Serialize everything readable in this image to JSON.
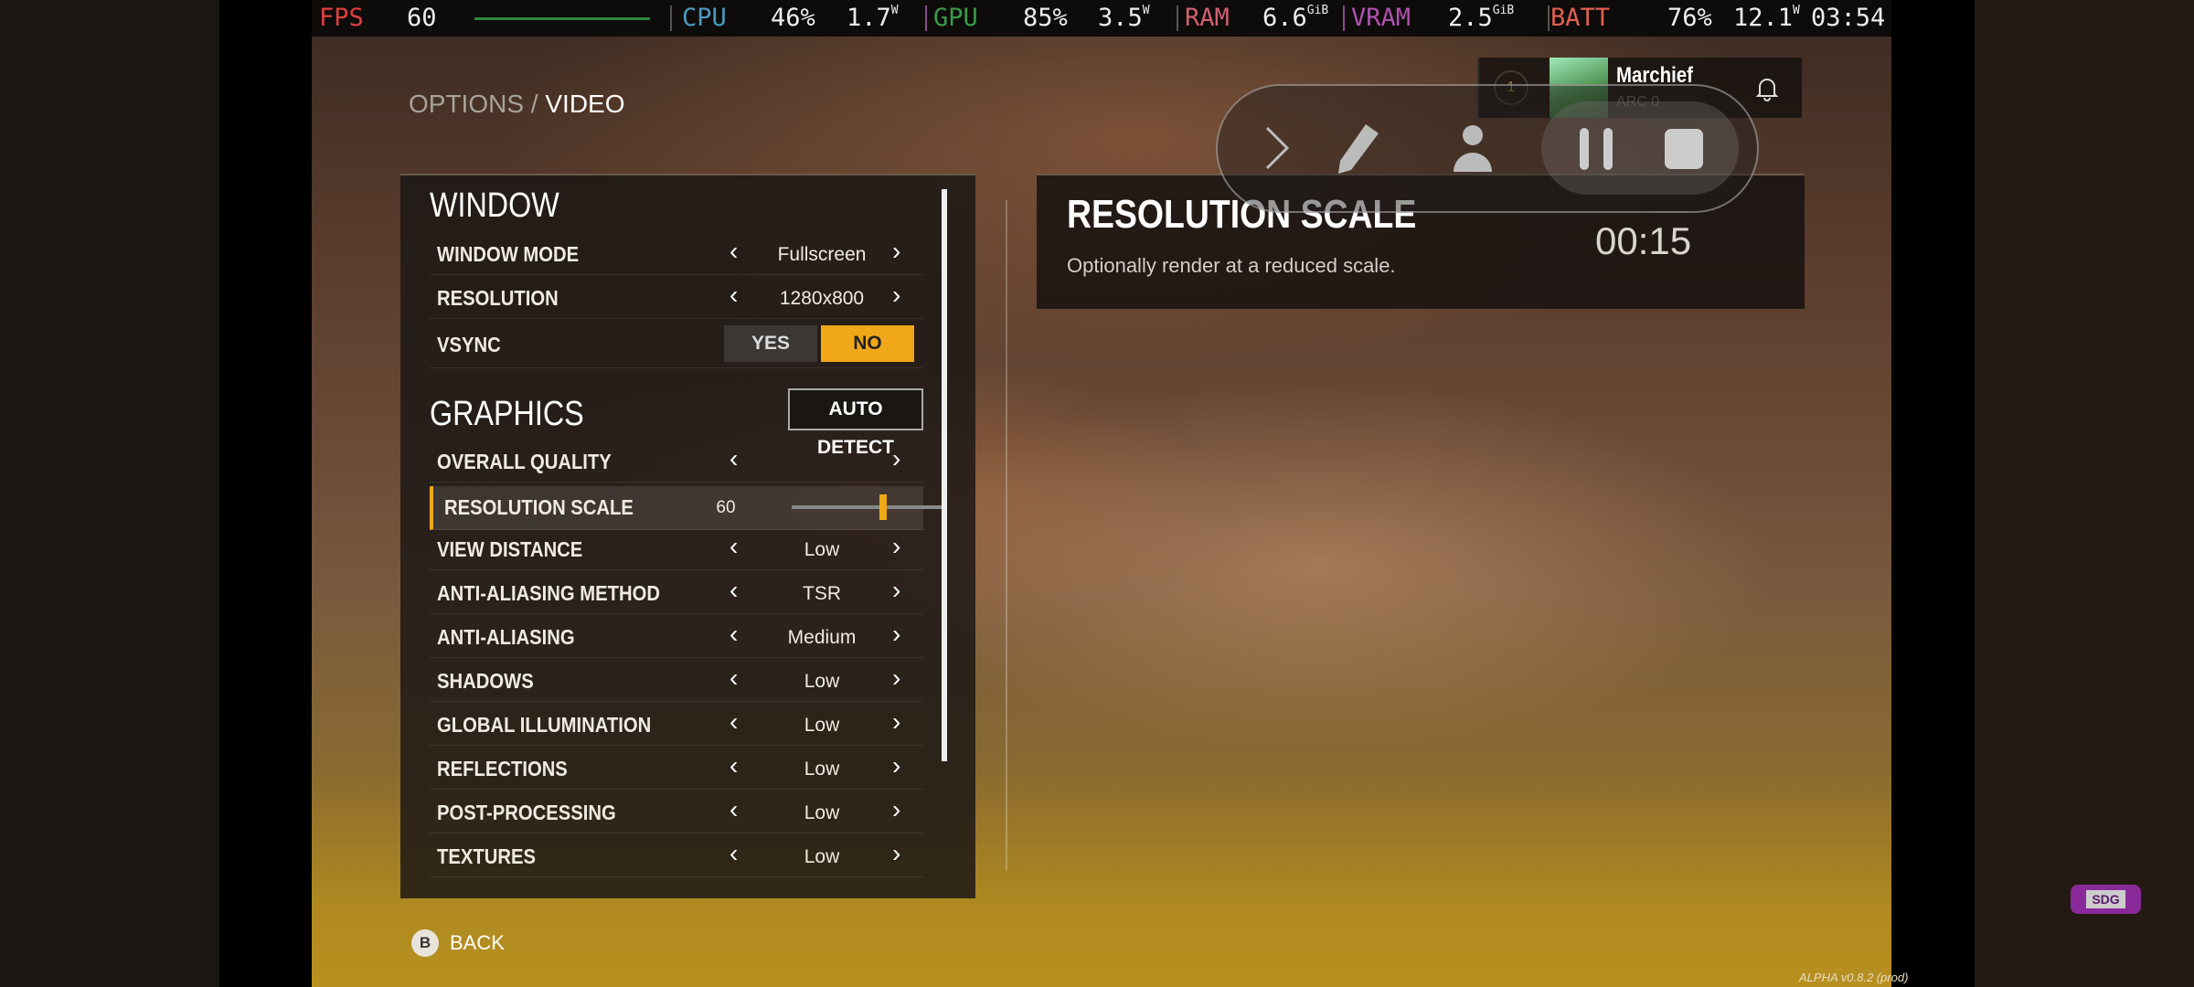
{
  "overlay_stats": {
    "fps_label": "FPS",
    "fps": "60",
    "cpu_label": "CPU",
    "cpu_pct": "46%",
    "cpu_w": "1.7",
    "gpu_label": "GPU",
    "gpu_pct": "85%",
    "gpu_w": "3.5",
    "ram_label": "RAM",
    "ram": "6.6",
    "vram_label": "VRAM",
    "vram": "2.5",
    "gib": "GiB",
    "w": "W",
    "batt_label": "BATT",
    "batt_pct": "76%",
    "batt_w": "12.1",
    "clock": "03:54"
  },
  "breadcrumb": {
    "parent": "OPTIONS",
    "sep": "/",
    "current": "VIDEO"
  },
  "window_section": {
    "title": "WINDOW",
    "rows": [
      {
        "label": "WINDOW MODE",
        "value": "Fullscreen"
      },
      {
        "label": "RESOLUTION",
        "value": "1280x800"
      }
    ],
    "vsync": {
      "label": "VSYNC",
      "yes": "YES",
      "no": "NO",
      "selected": "NO"
    }
  },
  "graphics_section": {
    "title": "GRAPHICS",
    "auto_detect": "AUTO DETECT",
    "overall_quality": {
      "label": "OVERALL QUALITY",
      "value": ""
    },
    "resolution_scale": {
      "label": "RESOLUTION SCALE",
      "value": "60",
      "min": 0,
      "max": 100
    },
    "rows": [
      {
        "label": "VIEW DISTANCE",
        "value": "Low"
      },
      {
        "label": "ANTI-ALIASING METHOD",
        "value": "TSR"
      },
      {
        "label": "ANTI-ALIASING",
        "value": "Medium"
      },
      {
        "label": "SHADOWS",
        "value": "Low"
      },
      {
        "label": "GLOBAL ILLUMINATION",
        "value": "Low"
      },
      {
        "label": "REFLECTIONS",
        "value": "Low"
      },
      {
        "label": "POST-PROCESSING",
        "value": "Low"
      },
      {
        "label": "TEXTURES",
        "value": "Low"
      }
    ]
  },
  "description": {
    "title": "RESOLUTION SCALE",
    "text": "Optionally render at a reduced scale."
  },
  "profile": {
    "level": "1",
    "name": "Marchief",
    "sub": "ARC 0"
  },
  "recorder": {
    "timer": "00:15"
  },
  "footer": {
    "back_key": "B",
    "back": "BACK",
    "version": "ALPHA v0.8.2 (prod)"
  },
  "badge": "SDG",
  "colors": {
    "accent": "#f0a818",
    "fps": "#e04040",
    "cpu": "#4a9ac0",
    "gpu": "#3a9a4a",
    "ram": "#d06070",
    "vram": "#b050b0",
    "batt": "#e06050"
  }
}
